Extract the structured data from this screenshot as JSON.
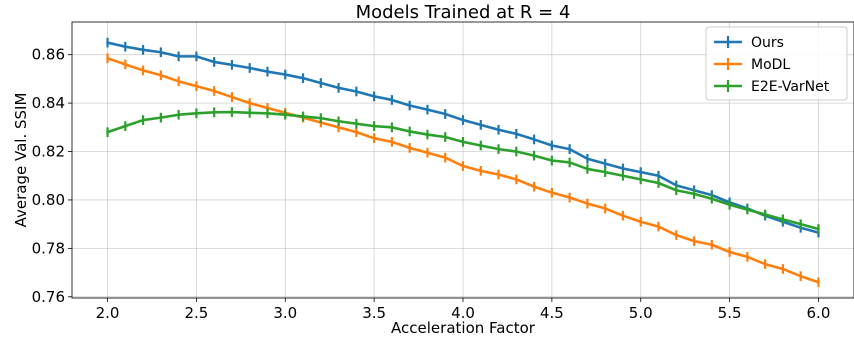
{
  "chart_data": {
    "type": "line",
    "title": "Models Trained at R = 4",
    "xlabel": "Acceleration Factor",
    "ylabel": "Average Val. SSIM",
    "xlim": [
      1.8,
      6.2
    ],
    "ylim": [
      0.7595,
      0.8735
    ],
    "xticks": [
      2.0,
      2.5,
      3.0,
      3.5,
      4.0,
      4.5,
      5.0,
      5.5,
      6.0
    ],
    "yticks": [
      0.76,
      0.78,
      0.8,
      0.82,
      0.84,
      0.86
    ],
    "xtick_labels": [
      "2.0",
      "2.5",
      "3.0",
      "3.5",
      "4.0",
      "4.5",
      "5.0",
      "5.5",
      "6.0"
    ],
    "ytick_labels": [
      "0.76",
      "0.78",
      "0.80",
      "0.82",
      "0.84",
      "0.86"
    ],
    "grid": true,
    "legend_position": "top-right",
    "error_bars": true,
    "x": [
      2.0,
      2.1,
      2.2,
      2.3,
      2.4,
      2.5,
      2.6,
      2.7,
      2.8,
      2.9,
      3.0,
      3.1,
      3.2,
      3.3,
      3.4,
      3.5,
      3.6,
      3.7,
      3.8,
      3.9,
      4.0,
      4.1,
      4.2,
      4.3,
      4.4,
      4.5,
      4.6,
      4.7,
      4.8,
      4.9,
      5.0,
      5.1,
      5.2,
      5.3,
      5.4,
      5.5,
      5.6,
      5.7,
      5.8,
      5.9,
      6.0
    ],
    "series": [
      {
        "name": "Ours",
        "color": "#1f77b4",
        "values": [
          0.865,
          0.8633,
          0.862,
          0.861,
          0.8593,
          0.8593,
          0.857,
          0.8558,
          0.8545,
          0.853,
          0.8518,
          0.8503,
          0.8483,
          0.8463,
          0.8448,
          0.8428,
          0.8413,
          0.839,
          0.8373,
          0.8355,
          0.833,
          0.831,
          0.829,
          0.8273,
          0.825,
          0.8225,
          0.821,
          0.817,
          0.815,
          0.813,
          0.8115,
          0.81,
          0.806,
          0.804,
          0.802,
          0.799,
          0.7965,
          0.7935,
          0.791,
          0.7885,
          0.7865
        ],
        "err": 0.002
      },
      {
        "name": "MoDL",
        "color": "#ff7f0e",
        "values": [
          0.8585,
          0.856,
          0.8535,
          0.8515,
          0.849,
          0.847,
          0.845,
          0.8425,
          0.84,
          0.838,
          0.836,
          0.834,
          0.832,
          0.83,
          0.828,
          0.8255,
          0.824,
          0.8215,
          0.8195,
          0.8175,
          0.814,
          0.812,
          0.8105,
          0.8085,
          0.8055,
          0.803,
          0.801,
          0.7985,
          0.7965,
          0.7935,
          0.791,
          0.789,
          0.7855,
          0.783,
          0.7815,
          0.7785,
          0.7765,
          0.7735,
          0.7715,
          0.7685,
          0.766
        ],
        "err": 0.002
      },
      {
        "name": "E2E-VarNet",
        "color": "#2ca02c",
        "values": [
          0.828,
          0.8305,
          0.833,
          0.834,
          0.8352,
          0.8358,
          0.8362,
          0.8363,
          0.836,
          0.8358,
          0.8352,
          0.8345,
          0.8338,
          0.8325,
          0.8315,
          0.8305,
          0.83,
          0.8283,
          0.827,
          0.826,
          0.824,
          0.8225,
          0.821,
          0.82,
          0.8183,
          0.8163,
          0.8155,
          0.8128,
          0.8115,
          0.81,
          0.8085,
          0.807,
          0.804,
          0.8025,
          0.8005,
          0.798,
          0.796,
          0.794,
          0.792,
          0.79,
          0.788
        ],
        "err": 0.002
      }
    ]
  }
}
